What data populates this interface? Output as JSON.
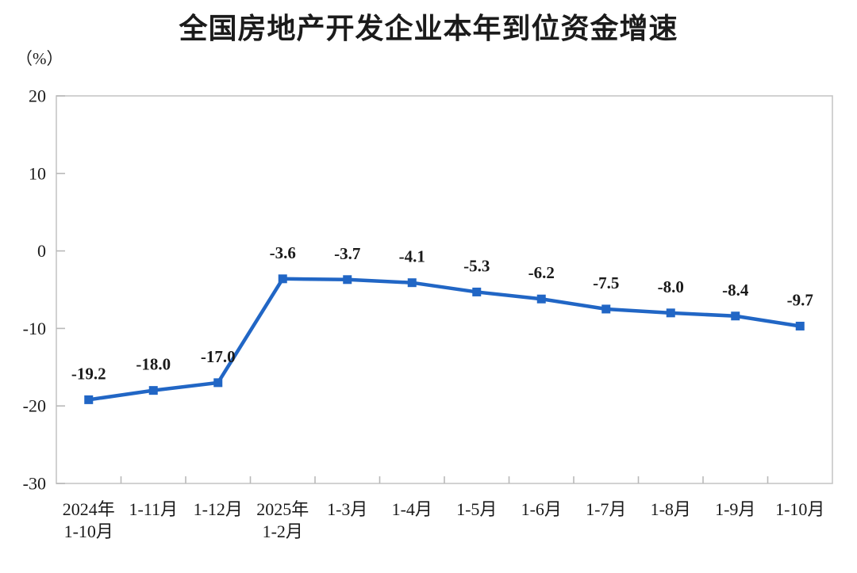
{
  "chart_data": {
    "type": "line",
    "title": "全国房地产开发企业本年到位资金增速",
    "unit_label": "（%）",
    "categories": [
      "2024年\n1-10月",
      "1-11月",
      "1-12月",
      "2025年\n1-2月",
      "1-3月",
      "1-4月",
      "1-5月",
      "1-6月",
      "1-7月",
      "1-8月",
      "1-9月",
      "1-10月"
    ],
    "values": [
      -19.2,
      -18.0,
      -17.0,
      -3.6,
      -3.7,
      -4.1,
      -5.3,
      -6.2,
      -7.5,
      -8.0,
      -8.4,
      -9.7
    ],
    "value_labels": [
      "-19.2",
      "-18.0",
      "-17.0",
      "-3.6",
      "-3.7",
      "-4.1",
      "-5.3",
      "-6.2",
      "-7.5",
      "-8.0",
      "-8.4",
      "-9.7"
    ],
    "xlabel": "",
    "ylabel": "（%）",
    "ylim": [
      -30,
      20
    ],
    "yticks": [
      20,
      10,
      0,
      -10,
      -20,
      -30
    ],
    "grid": "off",
    "legend": "none",
    "colors": {
      "line": "#2166C5",
      "marker": "#2166C5",
      "plot_border": "#c6c6c6",
      "tick": "#b9b9b9",
      "text": "#1a1a1a",
      "background": "#ffffff"
    }
  }
}
